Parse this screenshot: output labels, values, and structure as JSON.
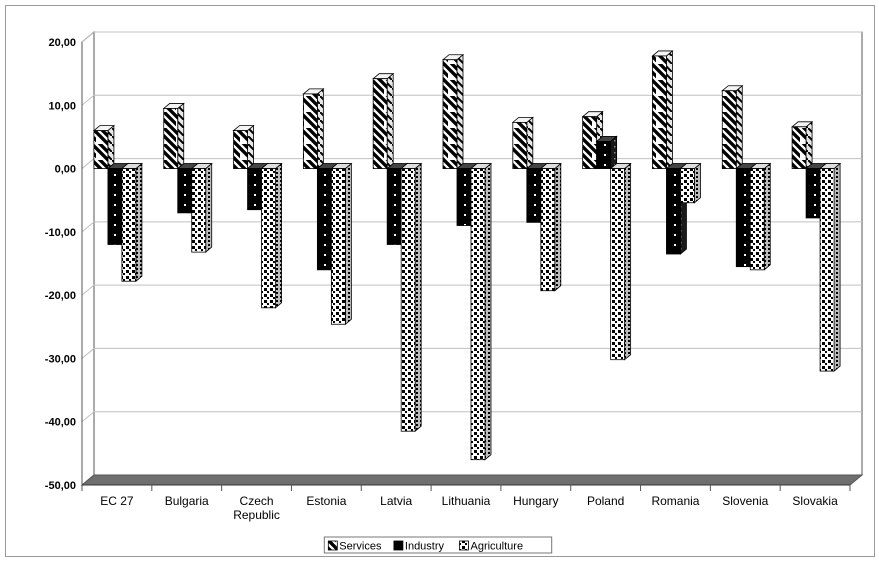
{
  "chart_data": {
    "type": "bar",
    "title": "",
    "xlabel": "",
    "ylabel": "",
    "ylim": [
      -50,
      20
    ],
    "yticks": [
      -50,
      -40,
      -30,
      -20,
      -10,
      0,
      10,
      20
    ],
    "ytick_labels": [
      "-50,00",
      "-40,00",
      "-30,00",
      "-20,00",
      "-10,00",
      "0,00",
      "10,00",
      "20,00"
    ],
    "grid": true,
    "legend_position": "bottom",
    "three_d": true,
    "categories": [
      [
        "EC 27"
      ],
      [
        "Bulgaria"
      ],
      [
        "Czech",
        "Republic"
      ],
      [
        "Estonia"
      ],
      [
        "Latvia"
      ],
      [
        "Lithuania"
      ],
      [
        "Hungary"
      ],
      [
        "Poland"
      ],
      [
        "Romania"
      ],
      [
        "Slovenia"
      ],
      [
        "Slovakia"
      ]
    ],
    "series": [
      {
        "name": "Services",
        "pattern": "diagonal-stripes",
        "values": [
          6.0,
          9.5,
          6.0,
          11.8,
          14.2,
          17.2,
          7.3,
          8.2,
          17.8,
          12.3,
          6.6
        ]
      },
      {
        "name": "Industry",
        "pattern": "black-dots",
        "values": [
          -12.0,
          -7.0,
          -6.5,
          -16.0,
          -12.0,
          -9.0,
          -8.5,
          4.3,
          -13.5,
          -15.5,
          -7.8
        ]
      },
      {
        "name": "Agriculture",
        "pattern": "checker",
        "values": [
          -17.8,
          -13.2,
          -22.0,
          -24.6,
          -41.5,
          -46.0,
          -19.3,
          -30.2,
          -5.4,
          -16.0,
          -32.0
        ]
      }
    ],
    "colors": {
      "frame": "#555555",
      "grid": "#c0c0c0",
      "floor": "#6f6f6f",
      "bar_fill": "#ffffff",
      "bar_dark": "#000000"
    }
  }
}
